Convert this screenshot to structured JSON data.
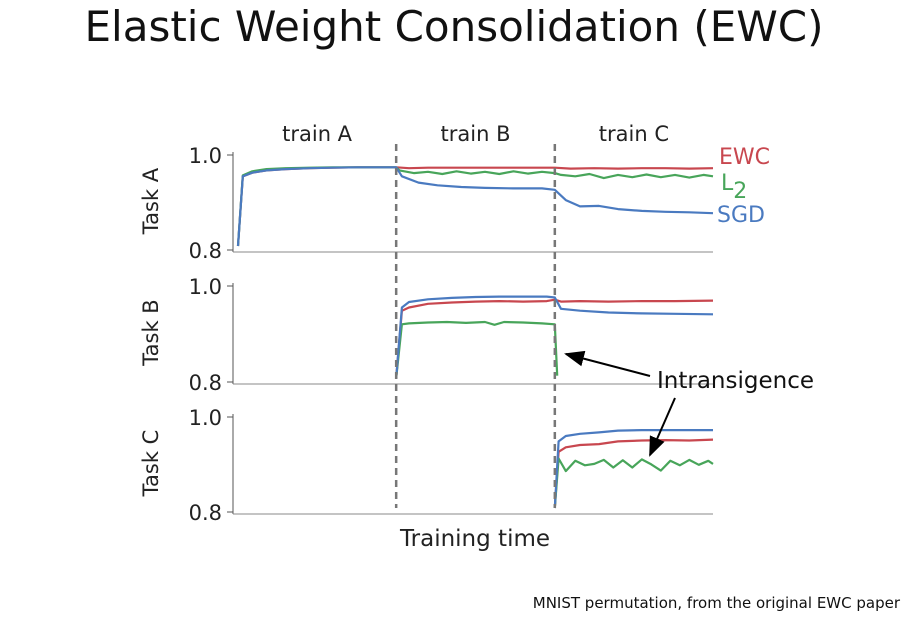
{
  "title": "Elastic Weight Consolidation (EWC)",
  "caption": "MNIST permutation, from the original EWC paper",
  "chart_data": {
    "type": "line",
    "xlabel": "Training time",
    "phases": [
      "train A",
      "train B",
      "train C"
    ],
    "phase_boundaries": [
      0.333,
      0.667
    ],
    "x_range": [
      0,
      1
    ],
    "panels": [
      {
        "ylabel": "Task A",
        "ylim": [
          0.8,
          1.0
        ],
        "yticks": [
          "1.0",
          "0.8"
        ],
        "series": [
          {
            "name": "EWC",
            "color": "#c8474f",
            "x": [
              0.0,
              0.01,
              0.03,
              0.06,
              0.1,
              0.15,
              0.2,
              0.25,
              0.3,
              0.333,
              0.36,
              0.4,
              0.45,
              0.5,
              0.55,
              0.6,
              0.65,
              0.667,
              0.7,
              0.75,
              0.8,
              0.85,
              0.9,
              0.95,
              1.0
            ],
            "y": [
              0.8,
              0.955,
              0.963,
              0.968,
              0.971,
              0.973,
              0.974,
              0.975,
              0.975,
              0.975,
              0.973,
              0.974,
              0.974,
              0.974,
              0.974,
              0.974,
              0.974,
              0.974,
              0.972,
              0.973,
              0.972,
              0.973,
              0.973,
              0.972,
              0.973
            ]
          },
          {
            "name": "L2",
            "color": "#48a55a",
            "x": [
              0.0,
              0.01,
              0.03,
              0.06,
              0.1,
              0.15,
              0.2,
              0.25,
              0.3,
              0.333,
              0.34,
              0.37,
              0.4,
              0.43,
              0.46,
              0.49,
              0.52,
              0.55,
              0.58,
              0.61,
              0.64,
              0.667,
              0.68,
              0.71,
              0.74,
              0.77,
              0.8,
              0.83,
              0.86,
              0.89,
              0.92,
              0.95,
              0.98,
              1.0
            ],
            "y": [
              0.8,
              0.957,
              0.966,
              0.971,
              0.973,
              0.974,
              0.975,
              0.975,
              0.975,
              0.975,
              0.968,
              0.962,
              0.965,
              0.96,
              0.966,
              0.961,
              0.965,
              0.96,
              0.966,
              0.961,
              0.965,
              0.962,
              0.958,
              0.955,
              0.96,
              0.951,
              0.958,
              0.953,
              0.959,
              0.953,
              0.958,
              0.952,
              0.958,
              0.955
            ]
          },
          {
            "name": "SGD",
            "color": "#4a7ac0",
            "x": [
              0.0,
              0.01,
              0.03,
              0.06,
              0.1,
              0.15,
              0.2,
              0.25,
              0.3,
              0.333,
              0.345,
              0.38,
              0.42,
              0.47,
              0.52,
              0.58,
              0.64,
              0.667,
              0.69,
              0.72,
              0.76,
              0.8,
              0.85,
              0.9,
              0.95,
              1.0
            ],
            "y": [
              0.8,
              0.955,
              0.963,
              0.968,
              0.971,
              0.973,
              0.974,
              0.975,
              0.975,
              0.975,
              0.955,
              0.941,
              0.935,
              0.931,
              0.929,
              0.928,
              0.928,
              0.925,
              0.902,
              0.888,
              0.889,
              0.882,
              0.878,
              0.876,
              0.875,
              0.873
            ]
          }
        ]
      },
      {
        "ylabel": "Task B",
        "ylim": [
          0.8,
          1.0
        ],
        "yticks": [
          "1.0",
          "0.8"
        ],
        "series": [
          {
            "name": "EWC",
            "color": "#c8474f",
            "x": [
              0.333,
              0.345,
              0.36,
              0.4,
              0.45,
              0.5,
              0.55,
              0.6,
              0.65,
              0.667,
              0.68,
              0.72,
              0.78,
              0.85,
              0.92,
              1.0
            ],
            "y": [
              0.8,
              0.948,
              0.955,
              0.963,
              0.966,
              0.968,
              0.969,
              0.968,
              0.969,
              0.972,
              0.968,
              0.969,
              0.968,
              0.969,
              0.969,
              0.97
            ]
          },
          {
            "name": "L2",
            "color": "#48a55a",
            "x": [
              0.333,
              0.345,
              0.36,
              0.4,
              0.44,
              0.48,
              0.52,
              0.54,
              0.56,
              0.6,
              0.64,
              0.667,
              0.672
            ],
            "y": [
              0.8,
              0.918,
              0.92,
              0.922,
              0.923,
              0.921,
              0.923,
              0.917,
              0.923,
              0.922,
              0.92,
              0.918,
              0.805
            ]
          },
          {
            "name": "SGD",
            "color": "#4a7ac0",
            "x": [
              0.333,
              0.345,
              0.36,
              0.4,
              0.45,
              0.5,
              0.55,
              0.6,
              0.65,
              0.667,
              0.68,
              0.72,
              0.78,
              0.85,
              0.92,
              1.0
            ],
            "y": [
              0.8,
              0.955,
              0.967,
              0.973,
              0.976,
              0.978,
              0.979,
              0.979,
              0.979,
              0.977,
              0.952,
              0.948,
              0.944,
              0.942,
              0.941,
              0.94
            ]
          }
        ]
      },
      {
        "ylabel": "Task C",
        "ylim": [
          0.8,
          1.0
        ],
        "yticks": [
          "1.0",
          "0.8"
        ],
        "series": [
          {
            "name": "EWC",
            "color": "#c8474f",
            "x": [
              0.667,
              0.675,
              0.69,
              0.72,
              0.76,
              0.8,
              0.85,
              0.9,
              0.95,
              1.0
            ],
            "y": [
              0.8,
              0.925,
              0.935,
              0.94,
              0.942,
              0.948,
              0.95,
              0.951,
              0.95,
              0.952
            ]
          },
          {
            "name": "L2",
            "color": "#48a55a",
            "x": [
              0.667,
              0.675,
              0.69,
              0.71,
              0.73,
              0.75,
              0.77,
              0.79,
              0.81,
              0.83,
              0.85,
              0.87,
              0.89,
              0.91,
              0.93,
              0.95,
              0.97,
              0.99,
              1.0
            ],
            "y": [
              0.8,
              0.91,
              0.882,
              0.905,
              0.895,
              0.898,
              0.907,
              0.89,
              0.906,
              0.89,
              0.908,
              0.897,
              0.883,
              0.905,
              0.895,
              0.907,
              0.896,
              0.905,
              0.898
            ]
          },
          {
            "name": "SGD",
            "color": "#4a7ac0",
            "x": [
              0.667,
              0.675,
              0.69,
              0.72,
              0.76,
              0.8,
              0.85,
              0.9,
              0.95,
              1.0
            ],
            "y": [
              0.8,
              0.948,
              0.96,
              0.965,
              0.968,
              0.972,
              0.973,
              0.973,
              0.973,
              0.973
            ]
          }
        ]
      }
    ],
    "legend": [
      {
        "label": "EWC",
        "color": "#c8474f"
      },
      {
        "label": "L",
        "subscript": "2",
        "color": "#48a55a"
      },
      {
        "label": "SGD",
        "color": "#4a7ac0"
      }
    ],
    "annotation": {
      "text": "Intransigence"
    }
  }
}
